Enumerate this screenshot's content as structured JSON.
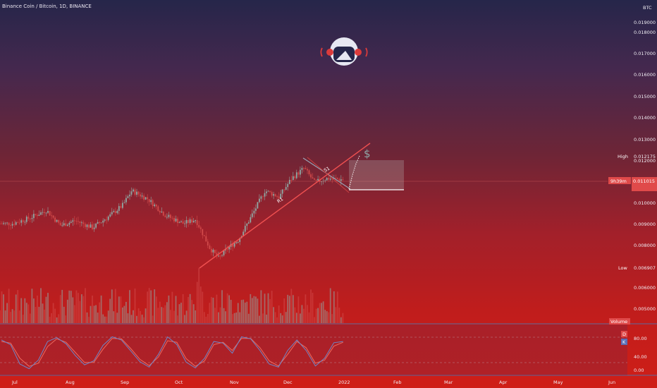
{
  "header": {
    "title": "Binance Coin / Bitcoin, 1D, BINANCE"
  },
  "axis": {
    "currency": "BTC",
    "price_ticks": [
      "0.019000",
      "0.018000",
      "0.017000",
      "0.016000",
      "0.015000",
      "0.014000",
      "0.013000",
      "0.012000",
      "0.010000",
      "0.009000",
      "0.008000",
      "0.006000",
      "0.005000"
    ],
    "osc_ticks": [
      "80.00",
      "40.00",
      "0.00"
    ],
    "month_ticks": [
      "Jul",
      "Aug",
      "Sep",
      "Oct",
      "Nov",
      "Dec",
      "2022",
      "Feb",
      "Mar",
      "Apr",
      "May",
      "Jun"
    ]
  },
  "labels": {
    "high_label": "High",
    "high_value": "0.012175",
    "low_label": "Low",
    "low_value": "0.006907",
    "countdown": "9h39m",
    "last_value": "0.011015",
    "volume_label": "Volume",
    "osc_d": "D",
    "osc_k": "K",
    "r1": "R1",
    "s1": "S1",
    "dollar": "$"
  },
  "colors": {
    "up": "#8fa9a5",
    "down": "#d14a4a",
    "trendline": "#f05050",
    "stoch_k": "#6f86c8",
    "stoch_d": "#ef6a5e",
    "accent_text": "#ffffff"
  },
  "chart_data": {
    "type": "candlestick",
    "symbol": "Binance Coin / Bitcoin",
    "interval": "1D",
    "exchange": "BINANCE",
    "close_series": [
      [
        "2021-07-01",
        0.0088
      ],
      [
        "2021-07-10",
        0.00905
      ],
      [
        "2021-07-20",
        0.00945
      ],
      [
        "2021-07-28",
        0.0087
      ],
      [
        "2021-08-05",
        0.00895
      ],
      [
        "2021-08-15",
        0.0086
      ],
      [
        "2021-08-25",
        0.0092
      ],
      [
        "2021-09-01",
        0.0097
      ],
      [
        "2021-09-06",
        0.0104
      ],
      [
        "2021-09-15",
        0.01
      ],
      [
        "2021-09-25",
        0.0092
      ],
      [
        "2021-10-05",
        0.0088
      ],
      [
        "2021-10-12",
        0.009
      ],
      [
        "2021-10-20",
        0.0076
      ],
      [
        "2021-10-25",
        0.0071
      ],
      [
        "2021-10-30",
        0.0076
      ],
      [
        "2021-11-05",
        0.008
      ],
      [
        "2021-11-12",
        0.0091
      ],
      [
        "2021-11-20",
        0.0104
      ],
      [
        "2021-11-28",
        0.0101
      ],
      [
        "2021-12-05",
        0.011
      ],
      [
        "2021-12-12",
        0.0115
      ],
      [
        "2021-12-18",
        0.0108
      ],
      [
        "2021-12-25",
        0.011
      ],
      [
        "2022-01-01",
        0.01095
      ]
    ],
    "high": 0.012175,
    "low": 0.006907,
    "last": 0.011015,
    "y_range": [
      0.0044,
      0.0191
    ],
    "annotations": [
      "R1",
      "S1",
      "$"
    ],
    "oscillator": {
      "name": "Stoch",
      "ticks": [
        80,
        40,
        0
      ],
      "k": [
        82,
        70,
        20,
        8,
        30,
        78,
        88,
        72,
        42,
        18,
        28,
        68,
        90,
        82,
        54,
        26,
        12,
        45,
        90,
        70,
        25,
        10,
        35,
        78,
        74,
        48,
        90,
        85,
        55,
        20,
        12,
        55,
        82,
        55,
        15,
        35,
        75,
        78
      ],
      "d": [
        78,
        74,
        35,
        14,
        22,
        65,
        85,
        76,
        50,
        24,
        24,
        58,
        86,
        85,
        60,
        32,
        16,
        38,
        80,
        76,
        34,
        14,
        28,
        70,
        76,
        55,
        86,
        86,
        62,
        28,
        15,
        45,
        78,
        62,
        22,
        30,
        66,
        76
      ]
    }
  }
}
